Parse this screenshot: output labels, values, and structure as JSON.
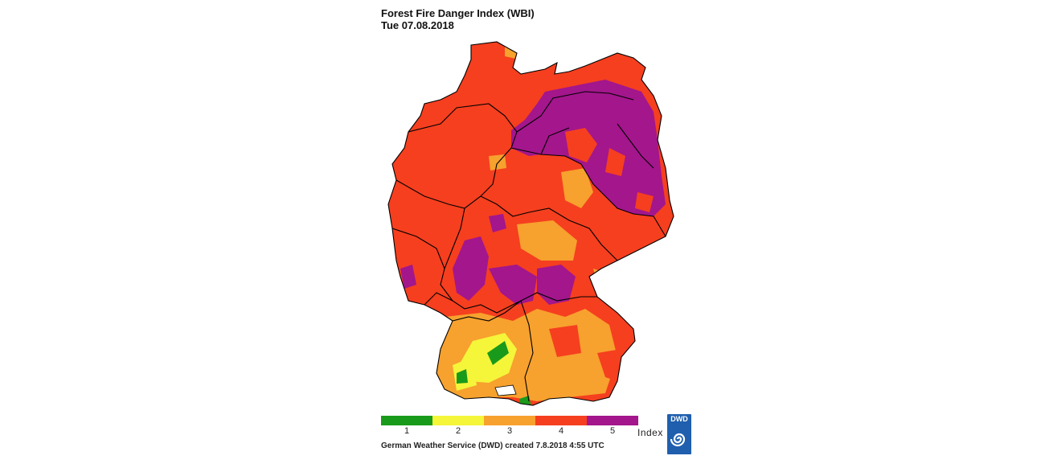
{
  "title": "Forest Fire Danger Index (WBI)",
  "subtitle": "Tue 07.08.2018",
  "legend": {
    "unit": "Index",
    "levels": [
      {
        "label": "1",
        "color": "#1a9a1a"
      },
      {
        "label": "2",
        "color": "#f5f53a"
      },
      {
        "label": "3",
        "color": "#f7a12e"
      },
      {
        "label": "4",
        "color": "#f53f1f"
      },
      {
        "label": "5",
        "color": "#a3168c"
      }
    ]
  },
  "footer": "German Weather Service (DWD) created 7.8.2018 4:55 UTC",
  "logo": {
    "text": "DWD",
    "color": "#1f5fae"
  },
  "map": {
    "region": "Germany",
    "dominant_level": "4",
    "border_color": "#000000"
  }
}
